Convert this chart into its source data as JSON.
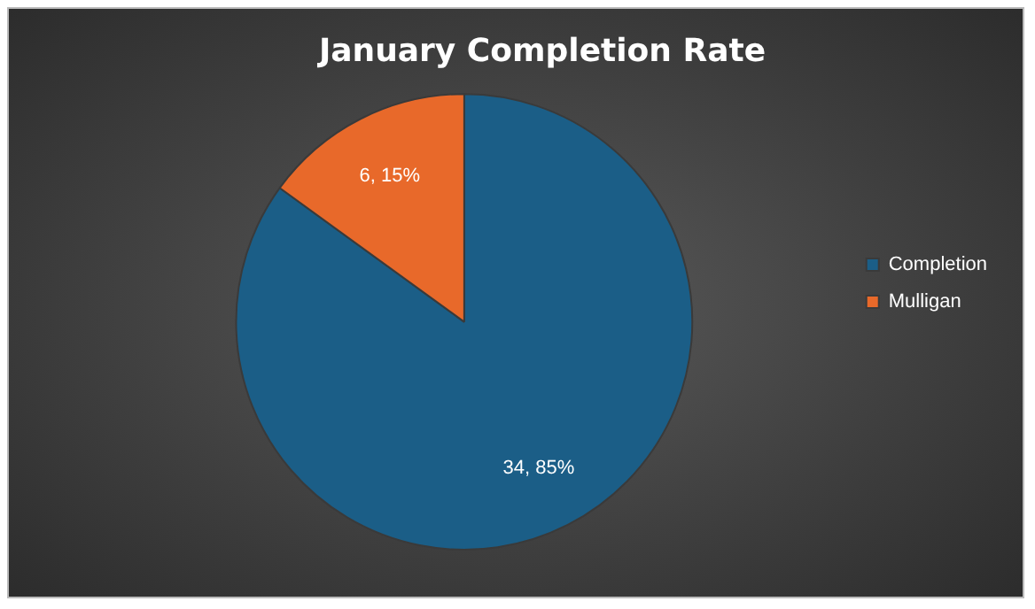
{
  "chart_data": {
    "type": "pie",
    "title": "January Completion Rate",
    "categories": [
      "Completion",
      "Mulligan"
    ],
    "values": [
      34,
      6
    ],
    "colors": [
      "#1b5e87",
      "#e8692a"
    ],
    "value_labels": [
      "34, 85%",
      "6, 15%"
    ],
    "legend": "right"
  }
}
